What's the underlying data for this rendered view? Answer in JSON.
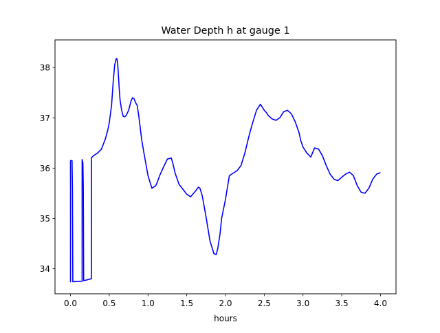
{
  "chart_data": {
    "type": "line",
    "title": "Water Depth h at gauge 1",
    "xlabel": "hours",
    "ylabel": "",
    "xlim": [
      -0.2,
      4.2
    ],
    "ylim": [
      33.5,
      38.55
    ],
    "xticks": [
      0.0,
      0.5,
      1.0,
      1.5,
      2.0,
      2.5,
      3.0,
      3.5,
      4.0
    ],
    "xtick_labels": [
      "0.0",
      "0.5",
      "1.0",
      "1.5",
      "2.0",
      "2.5",
      "3.0",
      "3.5",
      "4.0"
    ],
    "yticks": [
      34,
      35,
      36,
      37,
      38
    ],
    "ytick_labels": [
      "34",
      "35",
      "36",
      "37",
      "38"
    ],
    "grid": false,
    "series": [
      {
        "color": "#0000ff",
        "x": [
          0.0,
          0.0,
          0.02,
          0.025,
          0.03,
          0.15,
          0.15,
          0.16,
          0.165,
          0.17,
          0.27,
          0.27,
          0.28,
          0.3,
          0.35,
          0.4,
          0.45,
          0.48,
          0.5,
          0.53,
          0.55,
          0.57,
          0.59,
          0.6,
          0.61,
          0.62,
          0.63,
          0.64,
          0.66,
          0.68,
          0.7,
          0.72,
          0.75,
          0.78,
          0.8,
          0.82,
          0.84,
          0.86,
          0.88,
          0.9,
          0.92,
          0.95,
          1.0,
          1.05,
          1.1,
          1.12,
          1.15,
          1.2,
          1.25,
          1.3,
          1.32,
          1.35,
          1.4,
          1.45,
          1.5,
          1.55,
          1.6,
          1.65,
          1.67,
          1.7,
          1.75,
          1.8,
          1.85,
          1.88,
          1.9,
          1.93,
          1.95,
          2.0,
          2.05,
          2.1,
          2.15,
          2.2,
          2.25,
          2.3,
          2.35,
          2.4,
          2.45,
          2.48,
          2.5,
          2.53,
          2.55,
          2.6,
          2.65,
          2.7,
          2.75,
          2.8,
          2.85,
          2.9,
          2.95,
          2.97,
          3.0,
          3.05,
          3.1,
          3.15,
          3.2,
          3.25,
          3.3,
          3.35,
          3.4,
          3.45,
          3.5,
          3.55,
          3.6,
          3.65,
          3.7,
          3.75,
          3.8,
          3.85,
          3.9,
          3.95,
          4.0
        ],
        "y": [
          33.73,
          36.15,
          36.15,
          35.6,
          33.74,
          33.75,
          36.17,
          36.1,
          35.6,
          33.76,
          33.8,
          36.21,
          36.22,
          36.25,
          36.3,
          36.38,
          36.58,
          36.75,
          36.9,
          37.25,
          37.7,
          38.05,
          38.18,
          38.17,
          38.05,
          37.8,
          37.55,
          37.35,
          37.15,
          37.03,
          37.02,
          37.05,
          37.15,
          37.33,
          37.4,
          37.38,
          37.3,
          37.25,
          37.05,
          36.8,
          36.55,
          36.28,
          35.85,
          35.6,
          35.65,
          35.72,
          35.85,
          36.02,
          36.18,
          36.2,
          36.1,
          35.9,
          35.68,
          35.58,
          35.48,
          35.43,
          35.52,
          35.62,
          35.6,
          35.45,
          35.02,
          34.55,
          34.3,
          34.28,
          34.4,
          34.7,
          35.0,
          35.38,
          35.85,
          35.9,
          35.95,
          36.05,
          36.3,
          36.62,
          36.9,
          37.15,
          37.27,
          37.2,
          37.15,
          37.1,
          37.05,
          36.98,
          36.95,
          37.0,
          37.12,
          37.15,
          37.08,
          36.92,
          36.7,
          36.55,
          36.42,
          36.3,
          36.22,
          36.4,
          36.38,
          36.25,
          36.05,
          35.88,
          35.78,
          35.75,
          35.82,
          35.88,
          35.92,
          35.85,
          35.65,
          35.52,
          35.5,
          35.6,
          35.78,
          35.88,
          35.91
        ]
      }
    ]
  }
}
